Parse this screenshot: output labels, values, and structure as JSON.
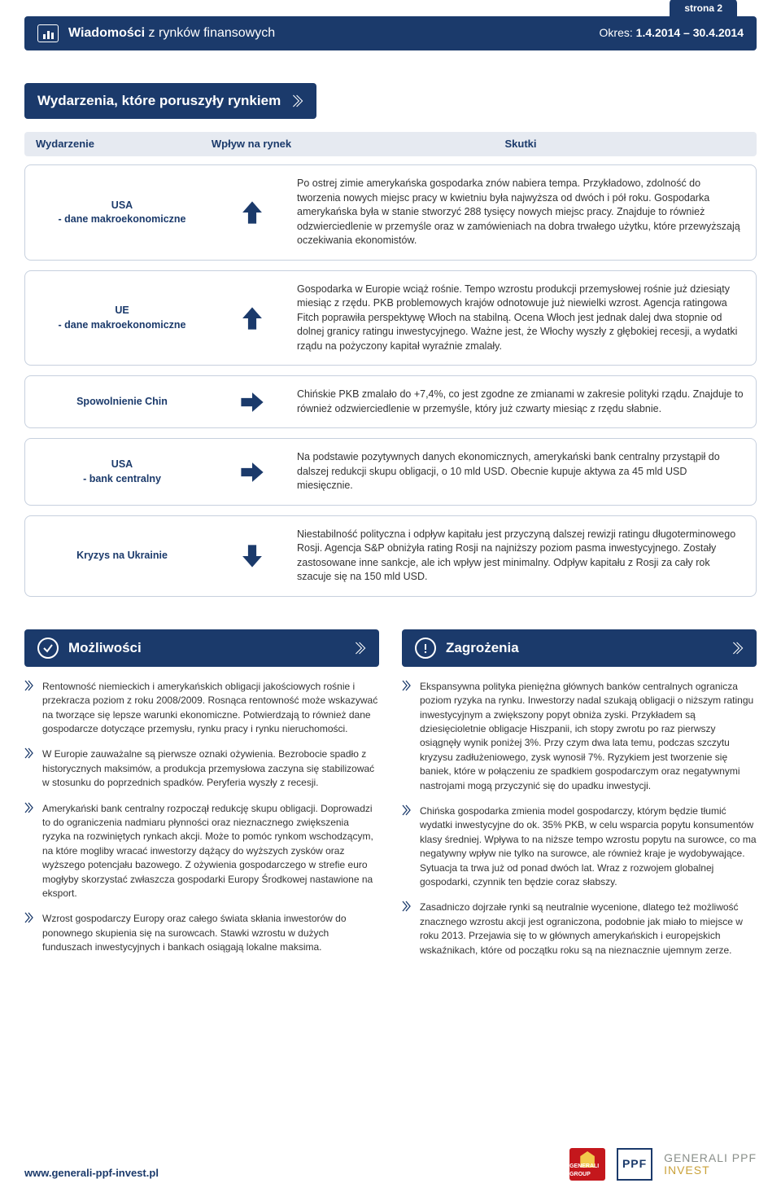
{
  "header": {
    "title_bold": "Wiadomości",
    "title_light": " z rynków finansowych",
    "page_tab": "strona 2",
    "period_label": "Okres: ",
    "period_value": "1.4.2014 – 30.4.2014"
  },
  "events": {
    "banner": "Wydarzenia, które poruszyły rynkiem",
    "columns": {
      "c1": "Wydarzenie",
      "c2": "Wpływ na rynek",
      "c3": "Skutki"
    },
    "rows": [
      {
        "name": "USA\n- dane makroekonomiczne",
        "direction": "up",
        "effect": "Po ostrej zimie amerykańska gospodarka znów nabiera tempa. Przykładowo, zdolność do tworzenia nowych miejsc pracy w kwietniu była najwyższa od dwóch i pół roku. Gospodarka amerykańska była w stanie stworzyć 288 tysięcy nowych miejsc pracy. Znajduje to również odzwierciedlenie w przemyśle oraz w zamówieniach na dobra trwałego użytku, które przewyższają oczekiwania ekonomistów."
      },
      {
        "name": "UE\n- dane makroekonomiczne",
        "direction": "up",
        "effect": "Gospodarka w Europie wciąż rośnie. Tempo wzrostu produkcji przemysłowej rośnie już dziesiąty miesiąc z rzędu. PKB problemowych krajów odnotowuje już niewielki wzrost. Agencja ratingowa Fitch poprawiła perspektywę Włoch na stabilną. Ocena Włoch jest jednak dalej dwa stopnie od dolnej granicy ratingu inwestycyjnego. Ważne jest, że Włochy wyszły z głębokiej recesji, a wydatki rządu na pożyczony kapitał wyraźnie zmalały."
      },
      {
        "name": "Spowolnienie Chin",
        "direction": "right",
        "effect": "Chińskie PKB zmalało do +7,4%, co jest zgodne ze zmianami w zakresie polityki rządu. Znajduje to również odzwierciedlenie w przemyśle, który już czwarty miesiąc z rzędu słabnie."
      },
      {
        "name": "USA\n- bank centralny",
        "direction": "right",
        "effect": "Na podstawie pozytywnych danych ekonomicznych, amerykański bank centralny przystąpił do dalszej redukcji skupu obligacji, o 10 mld USD. Obecnie kupuje aktywa za 45 mld USD miesięcznie."
      },
      {
        "name": "Kryzys na Ukrainie",
        "direction": "down",
        "effect": "Niestabilność polityczna i odpływ kapitału jest przyczyną dalszej rewizji ratingu długoterminowego Rosji. Agencja S&P obniżyła rating Rosji na najniższy poziom pasma inwestycyjnego. Zostały zastosowane inne sankcje, ale ich wpływ jest minimalny. Odpływ kapitału z Rosji za cały rok szacuje się na 150 mld USD."
      }
    ]
  },
  "opportunities": {
    "banner": "Możliwości",
    "items": [
      "Rentowność niemieckich i amerykańskich obligacji jakościowych rośnie i przekracza poziom z roku 2008/2009. Rosnąca rentowność może wskazywać na tworzące się lepsze warunki ekonomiczne. Potwierdzają to również dane gospodarcze dotyczące przemysłu, rynku pracy i rynku nieruchomości.",
      "W Europie zauważalne są pierwsze oznaki ożywienia. Bezrobocie spadło z historycznych maksimów, a produkcja przemysłowa zaczyna się stabilizować w stosunku do poprzednich spadków. Peryferia wyszły z recesji.",
      "Amerykański bank centralny rozpoczął redukcję skupu obligacji. Doprowadzi to do ograniczenia nadmiaru płynności oraz nieznacznego zwiększenia ryzyka na rozwiniętych rynkach akcji. Może to pomóc rynkom wschodzącym, na które mogliby wracać inwestorzy dążący do wyższych zysków oraz wyższego potencjału bazowego. Z ożywienia gospodarczego w strefie euro mogłyby skorzystać zwłaszcza gospodarki Europy Środkowej nastawione na eksport.",
      "Wzrost gospodarczy Europy oraz całego świata skłania inwestorów do ponownego skupienia się na surowcach. Stawki wzrostu w dużych funduszach inwestycyjnych i bankach osiągają lokalne maksima."
    ]
  },
  "threats": {
    "banner": "Zagrożenia",
    "items": [
      "Ekspansywna polityka pieniężna głównych banków centralnych ogranicza poziom ryzyka na rynku. Inwestorzy nadal szukają obligacji o niższym ratingu inwestycyjnym a zwiększony popyt obniża zyski. Przykładem są dziesięcioletnie obligacje Hiszpanii, ich stopy zwrotu po raz pierwszy osiągnęły wynik poniżej 3%. Przy czym dwa lata temu, podczas szczytu kryzysu zadłużeniowego, zysk wynosił 7%. Ryzykiem jest tworzenie się baniek, które w połączeniu ze spadkiem gospodarczym oraz negatywnymi nastrojami mogą przyczynić się do upadku inwestycji.",
      "Chińska gospodarka zmienia model gospodarczy, którym będzie tłumić wydatki inwestycyjne do ok. 35% PKB, w celu wsparcia popytu konsumentów klasy średniej. Wpływa to na niższe tempo wzrostu popytu na surowce, co ma negatywny wpływ nie tylko na surowce, ale również kraje je wydobywające. Sytuacja ta trwa już od ponad dwóch lat. Wraz z rozwojem globalnej gospodarki, czynnik ten będzie coraz słabszy.",
      "Zasadniczo dojrzałe rynki są neutralnie wycenione, dlatego też możliwość znacznego wzrostu akcji jest ograniczona, podobnie jak miało to miejsce w roku 2013. Przejawia się to w głównych amerykańskich i europejskich wskaźnikach, które od początku roku są na nieznacznie ujemnym zerze."
    ]
  },
  "footer": {
    "url": "www.generali-ppf-invest.pl",
    "logo1": "GENERALI GROUP",
    "logo2": "PPF",
    "logo3_line1": "GENERALI PPF",
    "logo3_line2": "INVEST"
  },
  "colors": {
    "navy": "#1b3a6b",
    "border": "#c7d0de",
    "head_bg": "#e6eaf1",
    "arrow": "#1b3a6b",
    "red": "#c4171c",
    "gold": "#caa23a"
  }
}
